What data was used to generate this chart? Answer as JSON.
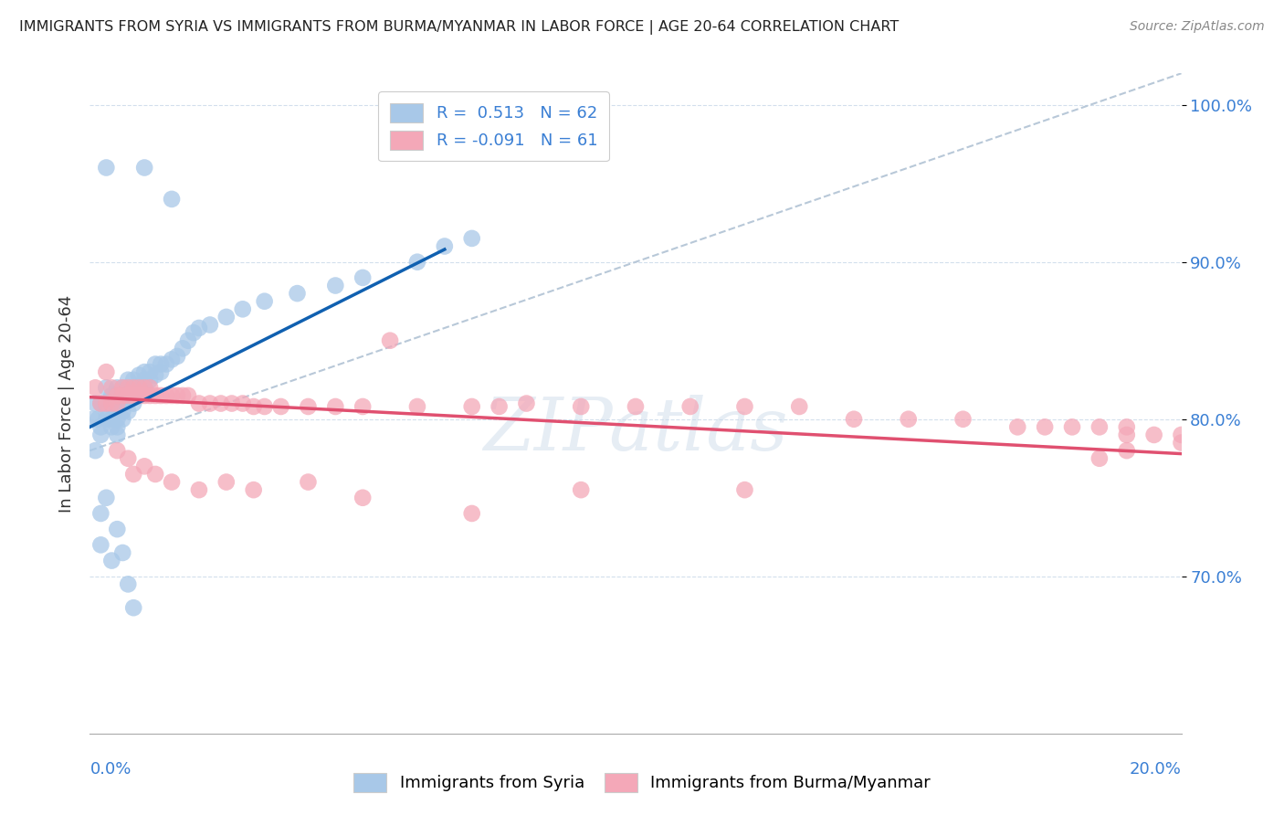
{
  "title": "IMMIGRANTS FROM SYRIA VS IMMIGRANTS FROM BURMA/MYANMAR IN LABOR FORCE | AGE 20-64 CORRELATION CHART",
  "source": "Source: ZipAtlas.com",
  "ylabel_label": "In Labor Force | Age 20-64",
  "r_syria": 0.513,
  "n_syria": 62,
  "r_burma": -0.091,
  "n_burma": 61,
  "syria_color": "#a8c8e8",
  "burma_color": "#f4a8b8",
  "syria_line_color": "#1060b0",
  "burma_line_color": "#e05070",
  "diagonal_color": "#b8c8d8",
  "background_color": "#ffffff",
  "watermark_text": "ZIPatlas",
  "xlim": [
    0.0,
    0.2
  ],
  "ylim": [
    0.6,
    1.02
  ],
  "yticks": [
    0.7,
    0.8,
    0.9,
    1.0
  ],
  "syria_x": [
    0.0005,
    0.001,
    0.001,
    0.0015,
    0.002,
    0.002,
    0.002,
    0.003,
    0.003,
    0.003,
    0.003,
    0.004,
    0.004,
    0.004,
    0.004,
    0.005,
    0.005,
    0.005,
    0.005,
    0.005,
    0.005,
    0.006,
    0.006,
    0.006,
    0.006,
    0.006,
    0.007,
    0.007,
    0.007,
    0.007,
    0.008,
    0.008,
    0.008,
    0.009,
    0.009,
    0.009,
    0.01,
    0.01,
    0.01,
    0.011,
    0.011,
    0.012,
    0.012,
    0.013,
    0.013,
    0.014,
    0.015,
    0.016,
    0.017,
    0.018,
    0.019,
    0.02,
    0.022,
    0.025,
    0.028,
    0.032,
    0.038,
    0.045,
    0.05,
    0.06,
    0.065,
    0.07
  ],
  "syria_y": [
    0.8,
    0.78,
    0.81,
    0.8,
    0.79,
    0.81,
    0.795,
    0.8,
    0.805,
    0.81,
    0.82,
    0.795,
    0.8,
    0.81,
    0.815,
    0.79,
    0.795,
    0.8,
    0.805,
    0.81,
    0.82,
    0.8,
    0.805,
    0.81,
    0.815,
    0.82,
    0.805,
    0.812,
    0.82,
    0.825,
    0.81,
    0.82,
    0.825,
    0.815,
    0.82,
    0.828,
    0.82,
    0.825,
    0.83,
    0.825,
    0.83,
    0.828,
    0.835,
    0.83,
    0.835,
    0.835,
    0.838,
    0.84,
    0.845,
    0.85,
    0.855,
    0.858,
    0.86,
    0.865,
    0.87,
    0.875,
    0.88,
    0.885,
    0.89,
    0.9,
    0.91,
    0.915
  ],
  "syria_outliers_x": [
    0.003,
    0.01,
    0.015,
    0.002,
    0.004,
    0.005,
    0.006,
    0.007,
    0.008,
    0.002,
    0.003
  ],
  "syria_outliers_y": [
    0.96,
    0.96,
    0.94,
    0.72,
    0.71,
    0.73,
    0.715,
    0.695,
    0.68,
    0.74,
    0.75
  ],
  "burma_x": [
    0.001,
    0.002,
    0.003,
    0.003,
    0.004,
    0.004,
    0.005,
    0.005,
    0.006,
    0.006,
    0.007,
    0.007,
    0.008,
    0.008,
    0.009,
    0.009,
    0.01,
    0.01,
    0.011,
    0.011,
    0.012,
    0.013,
    0.014,
    0.015,
    0.016,
    0.017,
    0.018,
    0.02,
    0.022,
    0.024,
    0.026,
    0.028,
    0.03,
    0.032,
    0.035,
    0.04,
    0.045,
    0.05,
    0.055,
    0.06,
    0.07,
    0.075,
    0.08,
    0.09,
    0.1,
    0.11,
    0.12,
    0.13,
    0.14,
    0.15,
    0.16,
    0.17,
    0.175,
    0.18,
    0.185,
    0.19,
    0.195,
    0.2,
    0.2,
    0.19,
    0.185
  ],
  "burma_y": [
    0.82,
    0.81,
    0.83,
    0.81,
    0.82,
    0.81,
    0.815,
    0.81,
    0.82,
    0.815,
    0.82,
    0.815,
    0.82,
    0.815,
    0.82,
    0.815,
    0.82,
    0.815,
    0.82,
    0.815,
    0.815,
    0.815,
    0.815,
    0.815,
    0.815,
    0.815,
    0.815,
    0.81,
    0.81,
    0.81,
    0.81,
    0.81,
    0.808,
    0.808,
    0.808,
    0.808,
    0.808,
    0.808,
    0.85,
    0.808,
    0.808,
    0.808,
    0.81,
    0.808,
    0.808,
    0.808,
    0.808,
    0.808,
    0.8,
    0.8,
    0.8,
    0.795,
    0.795,
    0.795,
    0.795,
    0.79,
    0.79,
    0.79,
    0.785,
    0.78,
    0.775
  ],
  "burma_outliers_x": [
    0.005,
    0.007,
    0.008,
    0.01,
    0.012,
    0.015,
    0.02,
    0.025,
    0.03,
    0.04,
    0.05,
    0.07,
    0.09,
    0.12,
    0.19
  ],
  "burma_outliers_y": [
    0.78,
    0.775,
    0.765,
    0.77,
    0.765,
    0.76,
    0.755,
    0.76,
    0.755,
    0.76,
    0.75,
    0.74,
    0.755,
    0.755,
    0.795
  ],
  "syria_line": [
    0.0,
    0.795,
    0.065,
    0.908
  ],
  "burma_line": [
    0.0,
    0.814,
    0.2,
    0.778
  ],
  "diag_line": [
    0.0,
    0.78,
    0.2,
    1.02
  ]
}
